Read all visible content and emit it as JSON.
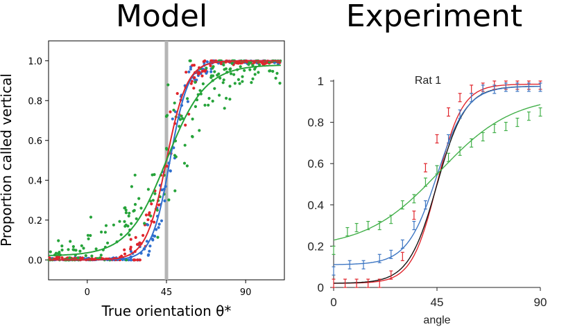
{
  "titles": {
    "left": "Model",
    "right": "Experiment"
  },
  "chart_data": [
    {
      "type": "scatter",
      "panel": "Model",
      "xlabel": "True orientation θ*",
      "ylabel": "Proportion called vertical",
      "xlim": [
        -22,
        112
      ],
      "ylim": [
        -0.1,
        1.1
      ],
      "xticks": [
        "0",
        "45",
        "90"
      ],
      "yticks": [
        "0.0",
        "0.2",
        "0.4",
        "0.6",
        "0.8",
        "1.0"
      ],
      "reference_line": {
        "x": 45,
        "color": "#b5b5b5"
      },
      "series": [
        {
          "color": "#2f6fce",
          "mu": 47,
          "s": 5.2,
          "lapse": 0.0,
          "noise": 0.05
        },
        {
          "color": "#e0252c",
          "mu": 45,
          "s": 5.8,
          "lapse": 0.0,
          "noise": 0.06
        },
        {
          "color": "#26a33a",
          "mu": 45,
          "s": 11,
          "lapse": 0.02,
          "noise": 0.09
        }
      ],
      "x_range_points": [
        -22,
        110
      ]
    },
    {
      "type": "line",
      "panel": "Experiment",
      "title": "Rat 1",
      "xlabel": "angle",
      "ylabel": "",
      "xlim": [
        0,
        90
      ],
      "ylim": [
        0,
        1
      ],
      "xticks": [
        "0",
        "45",
        "90"
      ],
      "yticks": [
        "0",
        "0.2",
        "0.4",
        "0.6",
        "0.8",
        "1"
      ],
      "series": [
        {
          "color": "#e0252c",
          "x": [
            0,
            5,
            10,
            15,
            20,
            25,
            30,
            35,
            40,
            45,
            50,
            55,
            60,
            65,
            70,
            75,
            80,
            85,
            90
          ],
          "y": [
            0.02,
            0.02,
            0.02,
            0.02,
            0.02,
            0.06,
            0.15,
            0.35,
            0.58,
            0.72,
            0.85,
            0.92,
            0.96,
            0.97,
            0.98,
            0.98,
            0.98,
            0.98,
            0.98
          ],
          "curve": {
            "lower": 0.02,
            "upper": 0.985,
            "mu": 45,
            "s": 5.5
          }
        },
        {
          "color": "#111111",
          "curve": {
            "lower": 0.02,
            "upper": 0.975,
            "mu": 45,
            "s": 6.2
          }
        },
        {
          "color": "#3d76c3",
          "x": [
            0,
            7,
            13,
            20,
            25,
            30,
            35,
            40,
            45,
            50,
            55,
            60,
            65,
            70,
            75,
            80,
            85,
            90
          ],
          "y": [
            0.08,
            0.11,
            0.11,
            0.14,
            0.16,
            0.21,
            0.3,
            0.4,
            0.57,
            0.72,
            0.84,
            0.92,
            0.96,
            0.96,
            0.97,
            0.97,
            0.97,
            0.97
          ],
          "curve": {
            "lower": 0.11,
            "upper": 0.975,
            "mu": 45,
            "s": 6.5
          }
        },
        {
          "color": "#43b04a",
          "x": [
            0,
            6,
            10,
            15,
            20,
            25,
            30,
            35,
            40,
            45,
            50,
            55,
            60,
            65,
            70,
            75,
            80,
            85,
            90
          ],
          "y": [
            0.18,
            0.27,
            0.29,
            0.3,
            0.3,
            0.33,
            0.4,
            0.43,
            0.51,
            0.57,
            0.63,
            0.66,
            0.7,
            0.73,
            0.77,
            0.78,
            0.8,
            0.83,
            0.85
          ],
          "curve": {
            "lower": 0.19,
            "upper": 0.93,
            "mu": 46,
            "s": 16
          }
        }
      ]
    }
  ]
}
